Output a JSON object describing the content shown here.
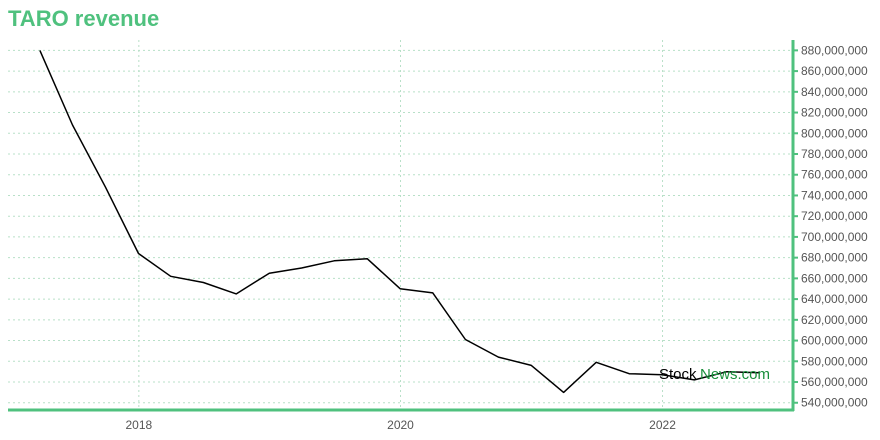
{
  "title": "TARO revenue",
  "watermark": {
    "part1": "Stock",
    "part2": "News.com"
  },
  "colors": {
    "accent": "#4fc17e",
    "line": "#000000",
    "grid": "#b8e0c8",
    "tick_text": "#555555"
  },
  "chart_data": {
    "type": "line",
    "title": "TARO revenue",
    "xlabel": "",
    "ylabel": "",
    "grid": true,
    "y_axis_position": "right",
    "xlim": [
      "2017-01-01",
      "2022-12-31"
    ],
    "ylim": [
      533000000,
      890000000
    ],
    "x_ticks": [
      "2018",
      "2020",
      "2022"
    ],
    "y_ticks": [
      540000000,
      560000000,
      580000000,
      600000000,
      620000000,
      640000000,
      660000000,
      680000000,
      700000000,
      720000000,
      740000000,
      760000000,
      780000000,
      800000000,
      820000000,
      840000000,
      860000000,
      880000000
    ],
    "y_tick_labels": [
      "540,000,000",
      "560,000,000",
      "580,000,000",
      "600,000,000",
      "620,000,000",
      "640,000,000",
      "660,000,000",
      "680,000,000",
      "700,000,000",
      "720,000,000",
      "740,000,000",
      "760,000,000",
      "780,000,000",
      "800,000,000",
      "820,000,000",
      "840,000,000",
      "860,000,000",
      "880,000,000"
    ],
    "series": [
      {
        "x": [
          "2017-03-31",
          "2017-06-30",
          "2017-09-30",
          "2017-12-31",
          "2018-03-31",
          "2018-06-30",
          "2018-09-30",
          "2018-12-31",
          "2019-03-31",
          "2019-06-30",
          "2019-09-30",
          "2019-12-31",
          "2020-03-31",
          "2020-06-30",
          "2020-09-30",
          "2020-12-31",
          "2021-03-31",
          "2021-06-30",
          "2021-09-30",
          "2021-12-31",
          "2022-03-31",
          "2022-06-30",
          "2022-09-30"
        ],
        "values": [
          880000000,
          808000000,
          748000000,
          684000000,
          662000000,
          656000000,
          645000000,
          665000000,
          670000000,
          677000000,
          679000000,
          650000000,
          646000000,
          601000000,
          584000000,
          576000000,
          550000000,
          579000000,
          568000000,
          567000000,
          562000000,
          570000000,
          569000000
        ]
      }
    ]
  }
}
